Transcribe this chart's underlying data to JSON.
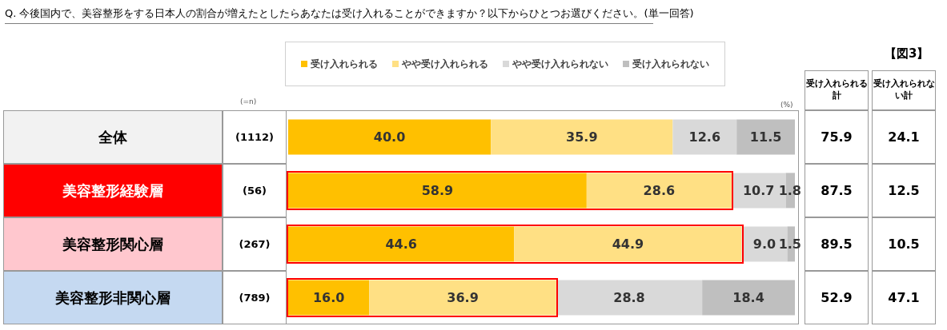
{
  "chart_data": {
    "type": "bar",
    "orientation": "horizontal",
    "stacked": true,
    "title": "Q. 今後国内で、美容整形をする日本人の割合が増えたとしたらあなたは受け入れることができますか？以下からひとつお選びください。(単一回答)",
    "categories": [
      "全体",
      "美容整形経験層",
      "美容整形関心層",
      "美容整形非関心層"
    ],
    "series": [
      {
        "name": "受け入れられる",
        "color": "#ffc000",
        "values": [
          40.0,
          58.9,
          44.6,
          16.0
        ],
        "value_labels": [
          "40.0",
          "58.9",
          "44.6",
          "16.0"
        ]
      },
      {
        "name": "やや受け入れられる",
        "color": "#ffe084",
        "values": [
          35.9,
          28.6,
          44.9,
          36.9
        ],
        "value_labels": [
          "35.9",
          "28.6",
          "44.9",
          "36.9"
        ]
      },
      {
        "name": "やや受け入れられない",
        "color": "#d9d9d9",
        "values": [
          12.6,
          10.7,
          9.0,
          28.8
        ],
        "value_labels": [
          "12.6",
          "10.7",
          "9.0",
          "28.8"
        ]
      },
      {
        "name": "受け入れられない",
        "color": "#bfbfbf",
        "values": [
          11.5,
          1.8,
          1.5,
          18.4
        ],
        "value_labels": [
          "11.5",
          "1.8",
          "1.5",
          "18.4"
        ]
      }
    ],
    "xlim": [
      0,
      100
    ],
    "legend": "top",
    "annotations": [
      "(=n)",
      "(%)",
      "【図3】",
      "受け入れられる計",
      "受け入れられない計",
      "(1112)",
      "(56)",
      "(267)",
      "(789)",
      "75.9",
      "24.1",
      "87.5",
      "12.5",
      "89.5",
      "10.5",
      "52.9",
      "47.1"
    ]
  }
}
